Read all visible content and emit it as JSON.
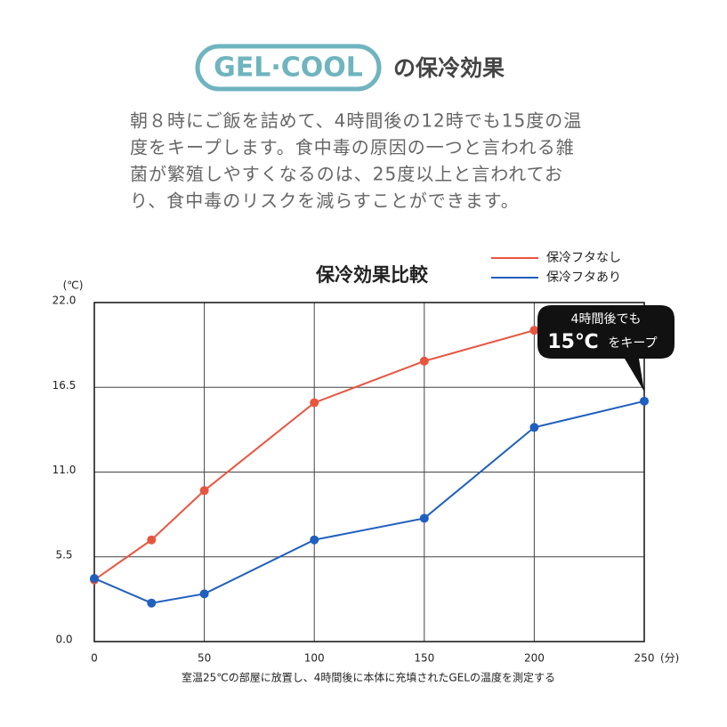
{
  "logo": "GEL·COOL",
  "heading": "の保冷効果",
  "description": [
    "朝８時にご飯を詰めて、4時間後の12時でも15度の温",
    "度をキープします。食中毒の原因の一つと言われる雑",
    "菌が繁殖しやすくなるのは、25度以上と言われてお",
    "り、食中毒のリスクを減らすことができます。"
  ],
  "chart_data": {
    "type": "line",
    "title": "保冷効果比較",
    "xlabel": "(分)",
    "ylabel": "(℃)",
    "x": [
      0,
      26,
      50,
      100,
      150,
      200,
      250
    ],
    "series": [
      {
        "name": "保冷フタなし",
        "color": "#e8553f",
        "values": [
          4.0,
          6.6,
          9.8,
          15.5,
          18.2,
          20.2,
          null
        ]
      },
      {
        "name": "保冷フタあり",
        "color": "#1f5fbf",
        "values": [
          4.1,
          2.5,
          3.1,
          6.6,
          8.0,
          13.9,
          15.6
        ]
      }
    ],
    "xlim": [
      0,
      250
    ],
    "xticks": [
      0,
      50,
      100,
      150,
      200,
      250
    ],
    "ylim": [
      0,
      22
    ],
    "yticks": [
      {
        "value": 0,
        "label": "0.0"
      },
      5.5,
      {
        "value": 11,
        "label": "11.0"
      },
      16.5,
      {
        "value": 22,
        "label": "22.0"
      }
    ],
    "grid": true,
    "legend": "top-right",
    "annotation": [
      "4時間後でも",
      "15℃",
      "をキープ"
    ],
    "note": "室温25℃の部屋に放置し、4時間後に本体に充填されたGELの温度を測定する"
  }
}
